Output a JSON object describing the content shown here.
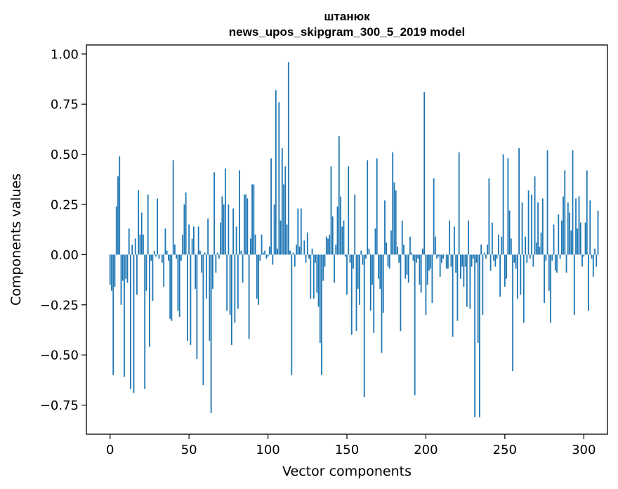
{
  "chart_data": {
    "type": "bar",
    "title_line1": "штанюк",
    "title_line2": "news_upos_skipgram_300_5_2019 model",
    "xlabel": "Vector components",
    "ylabel": "Components values",
    "xlim": [
      -15,
      315
    ],
    "ylim": [
      -0.895,
      1.045
    ],
    "xticks": [
      0,
      50,
      100,
      150,
      200,
      250,
      300
    ],
    "xtick_labels": [
      "0",
      "50",
      "100",
      "150",
      "200",
      "250",
      "300"
    ],
    "yticks": [
      1.0,
      0.75,
      0.5,
      0.25,
      0.0,
      -0.25,
      -0.5,
      -0.75
    ],
    "ytick_labels": [
      "1.00",
      "0.75",
      "0.50",
      "0.25",
      "0.00",
      "−0.25",
      "−0.50",
      "−0.75"
    ],
    "grid": false,
    "bar_color": "#1f77b4",
    "x_start": 0,
    "values": [
      -0.15,
      -0.18,
      -0.6,
      -0.16,
      0.24,
      0.39,
      0.49,
      -0.25,
      -0.13,
      -0.61,
      -0.12,
      -0.14,
      0.13,
      -0.67,
      0.05,
      -0.69,
      0.08,
      -0.2,
      0.32,
      0.1,
      0.21,
      0.1,
      -0.67,
      -0.18,
      0.3,
      -0.46,
      -0.03,
      -0.23,
      0.02,
      -0.01,
      0.28,
      -0.02,
      0.0,
      -0.04,
      -0.16,
      0.13,
      0.02,
      -0.03,
      -0.32,
      -0.33,
      0.47,
      0.05,
      -0.02,
      -0.28,
      -0.31,
      -0.03,
      0.1,
      0.25,
      0.31,
      -0.43,
      0.15,
      -0.45,
      0.08,
      0.14,
      -0.17,
      -0.52,
      0.14,
      0.02,
      -0.09,
      -0.65,
      0.01,
      -0.22,
      0.18,
      -0.43,
      -0.79,
      -0.17,
      0.41,
      -0.09,
      0.01,
      -0.02,
      0.16,
      0.29,
      0.25,
      0.43,
      -0.28,
      0.25,
      -0.3,
      -0.45,
      0.23,
      -0.34,
      0.14,
      -0.27,
      0.42,
      0.02,
      -0.14,
      0.3,
      0.3,
      0.28,
      -0.42,
      0.08,
      0.35,
      0.35,
      0.1,
      -0.22,
      -0.25,
      -0.03,
      0.1,
      0.01,
      0.02,
      -0.02,
      -0.01,
      0.04,
      0.48,
      -0.05,
      0.25,
      0.82,
      0.03,
      0.76,
      0.17,
      0.53,
      0.35,
      0.44,
      0.15,
      0.96,
      0.02,
      -0.6,
      0.01,
      -0.06,
      0.05,
      0.23,
      0.04,
      0.23,
      0.0,
      0.07,
      -0.04,
      0.11,
      -0.02,
      -0.22,
      0.03,
      -0.22,
      -0.04,
      -0.19,
      -0.26,
      -0.44,
      -0.6,
      -0.13,
      -0.06,
      0.09,
      0.08,
      0.1,
      0.44,
      0.19,
      -0.14,
      0.05,
      0.24,
      0.59,
      0.29,
      0.14,
      0.17,
      -0.01,
      -0.2,
      0.44,
      -0.04,
      -0.4,
      -0.07,
      0.3,
      -0.38,
      -0.17,
      -0.25,
      0.02,
      -0.05,
      -0.71,
      -0.02,
      0.47,
      0.03,
      -0.28,
      -0.15,
      -0.39,
      0.13,
      0.48,
      -0.12,
      -0.17,
      -0.49,
      -0.29,
      0.27,
      0.06,
      -0.06,
      -0.07,
      0.12,
      0.51,
      0.36,
      0.32,
      0.04,
      -0.04,
      -0.38,
      0.17,
      0.05,
      -0.12,
      -0.1,
      -0.14,
      0.09,
      0.01,
      -0.03,
      -0.7,
      -0.04,
      -0.02,
      -0.15,
      -0.19,
      0.03,
      0.81,
      -0.3,
      -0.15,
      -0.08,
      -0.07,
      -0.24,
      0.38,
      0.09,
      -0.02,
      -0.01,
      -0.11,
      -0.04,
      -0.02,
      0.0,
      -0.07,
      -0.07,
      0.17,
      -0.06,
      -0.41,
      0.14,
      -0.09,
      -0.33,
      0.51,
      -0.12,
      -0.06,
      -0.16,
      -0.06,
      -0.26,
      0.17,
      -0.27,
      -0.06,
      -0.02,
      -0.81,
      -0.04,
      -0.44,
      -0.81,
      0.05,
      -0.3,
      0.01,
      -0.02,
      0.05,
      0.38,
      -0.08,
      0.16,
      -0.03,
      -0.06,
      -0.02,
      0.1,
      -0.21,
      0.09,
      0.5,
      -0.16,
      -0.12,
      0.48,
      0.22,
      0.08,
      -0.58,
      -0.04,
      -0.07,
      -0.22,
      0.53,
      -0.2,
      0.26,
      -0.34,
      0.09,
      -0.04,
      0.32,
      -0.02,
      0.3,
      -0.06,
      0.39,
      0.06,
      0.26,
      0.04,
      0.11,
      0.28,
      -0.24,
      -0.03,
      0.52,
      -0.18,
      -0.34,
      -0.03,
      0.15,
      -0.08,
      -0.09,
      0.2,
      -0.02,
      0.17,
      0.29,
      0.42,
      -0.09,
      0.26,
      0.21,
      0.12,
      0.52,
      -0.3,
      0.28,
      0.13,
      0.29,
      0.16,
      -0.06,
      -0.01,
      0.16,
      0.42,
      -0.28,
      0.27,
      -0.02,
      -0.11,
      0.03,
      -0.06,
      0.22
    ]
  }
}
